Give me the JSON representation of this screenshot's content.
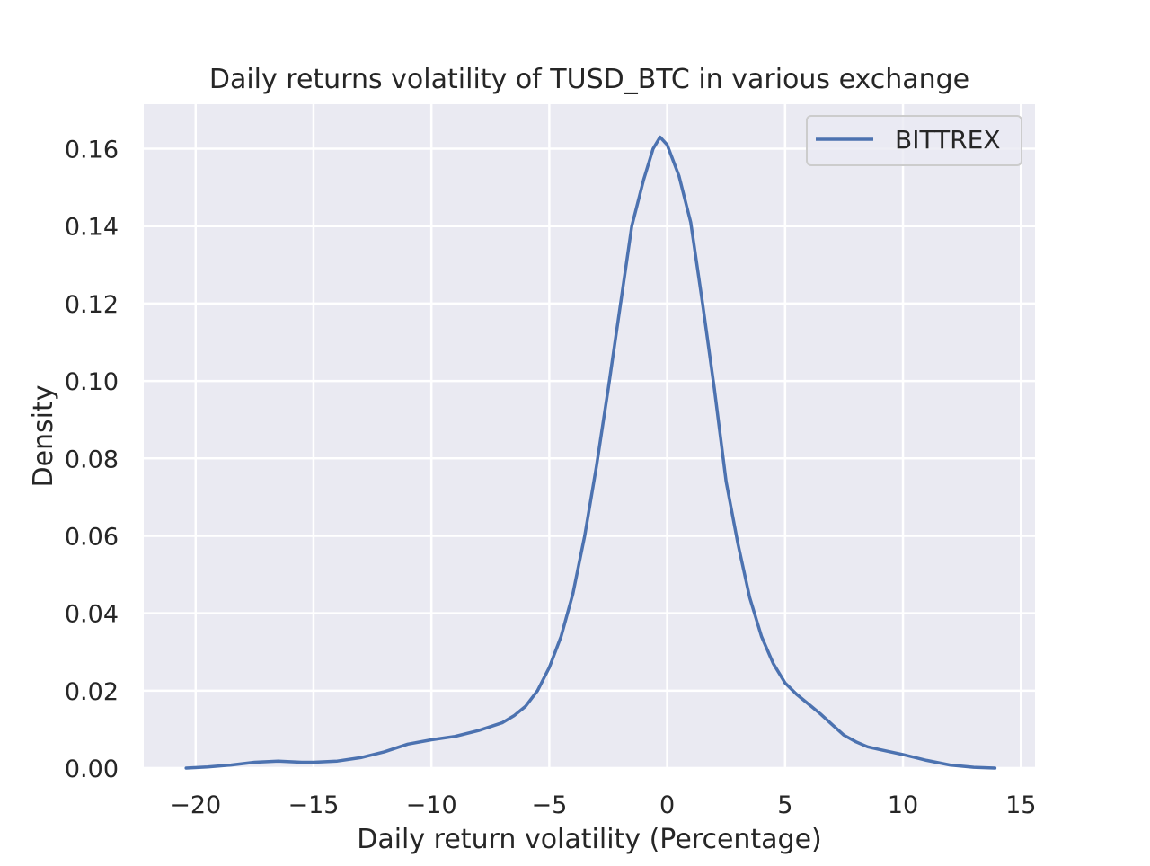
{
  "chart_data": {
    "type": "line",
    "title": "Daily returns volatility of TUSD_BTC in various exchange",
    "xlabel": "Daily return volatility (Percentage)",
    "ylabel": "Density",
    "xlim": [
      -22.2,
      15.6
    ],
    "ylim": [
      0,
      0.1715
    ],
    "x_ticks": [
      -20,
      -15,
      -10,
      -5,
      0,
      5,
      10,
      15
    ],
    "x_tick_labels": [
      "−20",
      "−15",
      "−10",
      "−5",
      "0",
      "5",
      "10",
      "15"
    ],
    "y_ticks": [
      0.0,
      0.02,
      0.04,
      0.06,
      0.08,
      0.1,
      0.12,
      0.14,
      0.16
    ],
    "y_tick_labels": [
      "0.00",
      "0.02",
      "0.04",
      "0.06",
      "0.08",
      "0.10",
      "0.12",
      "0.14",
      "0.16"
    ],
    "grid": true,
    "legend_position": "top-right",
    "colors": {
      "plot_background": "#eaeaf2",
      "grid": "#ffffff",
      "text": "#262626",
      "legend_border": "#cccccc"
    },
    "series": [
      {
        "name": "BITTREX",
        "color": "#4c72b0",
        "x": [
          -20.4,
          -19.5,
          -18.5,
          -17.5,
          -16.5,
          -15.5,
          -15,
          -14,
          -13,
          -12,
          -11,
          -10,
          -9,
          -8,
          -7,
          -6.5,
          -6,
          -5.5,
          -5,
          -4.5,
          -4,
          -3.5,
          -3,
          -2.5,
          -2,
          -1.5,
          -1,
          -0.6,
          -0.3,
          0,
          0.5,
          1,
          1.5,
          2,
          2.5,
          3,
          3.5,
          4,
          4.5,
          5,
          5.5,
          6,
          6.5,
          7,
          7.5,
          8,
          8.5,
          9,
          10,
          11,
          12,
          13,
          13.9
        ],
        "y": [
          0.0,
          0.0003,
          0.0008,
          0.0015,
          0.0018,
          0.0015,
          0.0015,
          0.0018,
          0.0027,
          0.0042,
          0.0062,
          0.0073,
          0.0082,
          0.0097,
          0.0117,
          0.0135,
          0.016,
          0.02,
          0.026,
          0.034,
          0.045,
          0.06,
          0.078,
          0.098,
          0.119,
          0.14,
          0.152,
          0.16,
          0.163,
          0.161,
          0.153,
          0.141,
          0.12,
          0.098,
          0.074,
          0.058,
          0.044,
          0.034,
          0.027,
          0.022,
          0.019,
          0.0165,
          0.014,
          0.0112,
          0.0085,
          0.0068,
          0.0055,
          0.0048,
          0.0035,
          0.002,
          0.0008,
          0.0002,
          0.0
        ]
      }
    ]
  }
}
